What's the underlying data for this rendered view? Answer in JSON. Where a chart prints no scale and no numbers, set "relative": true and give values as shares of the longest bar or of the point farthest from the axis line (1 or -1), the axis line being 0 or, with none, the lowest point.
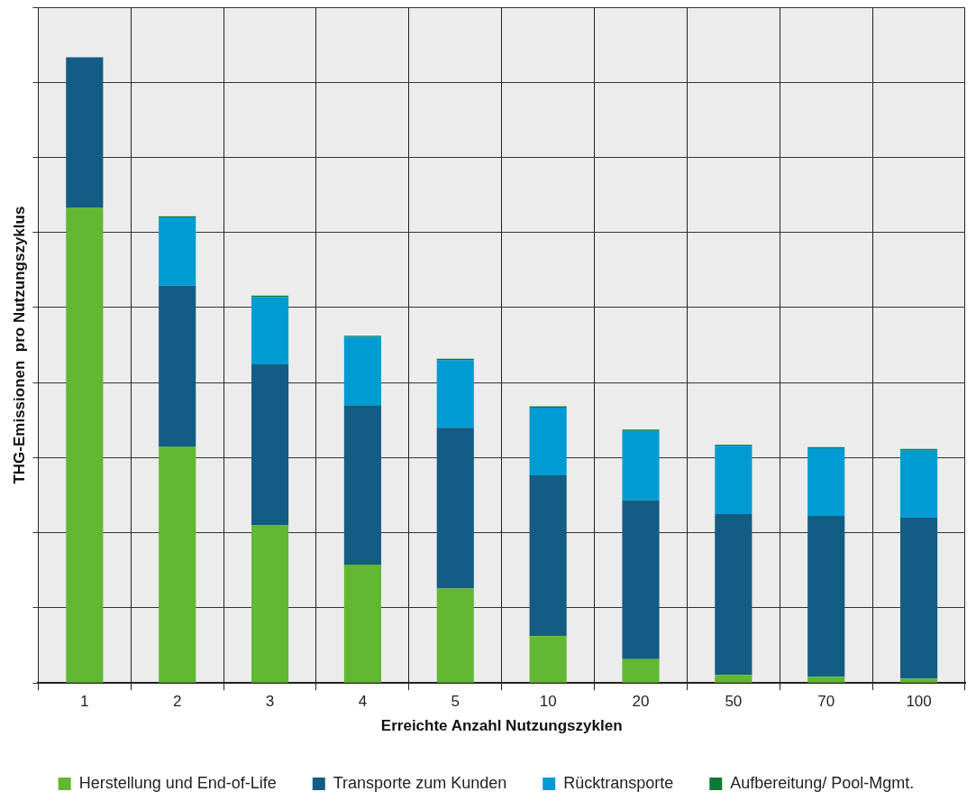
{
  "chart_data": {
    "type": "bar",
    "stacked": true,
    "relative": true,
    "xlabel": "Erreichte Anzahl Nutzungszyklen",
    "ylabel": "THG-Emissionen  pro Nutzungszyklus",
    "categories": [
      "1",
      "2",
      "3",
      "4",
      "5",
      "10",
      "20",
      "50",
      "70",
      "100"
    ],
    "grid": true,
    "legend": "bottom",
    "series": [
      {
        "name": "Herstellung und End-of-Life",
        "color": "#62b832",
        "values": [
          0.76,
          0.378,
          0.252,
          0.189,
          0.151,
          0.075,
          0.038,
          0.013,
          0.01,
          0.007
        ]
      },
      {
        "name": "Transporte zum Kunden",
        "color": "#135c84",
        "values": [
          0.24,
          0.257,
          0.257,
          0.255,
          0.257,
          0.257,
          0.254,
          0.257,
          0.257,
          0.257
        ]
      },
      {
        "name": "Rücktransporte",
        "color": "#009bd3",
        "values": [
          0,
          0.109,
          0.108,
          0.109,
          0.108,
          0.108,
          0.111,
          0.109,
          0.108,
          0.108
        ]
      },
      {
        "name": "Aufbereitung/ Pool-Mgmt.",
        "color": "#0e7a35",
        "values": [
          0,
          0.002,
          0.002,
          0.002,
          0.002,
          0.002,
          0.002,
          0.002,
          0.002,
          0.002
        ]
      }
    ]
  }
}
